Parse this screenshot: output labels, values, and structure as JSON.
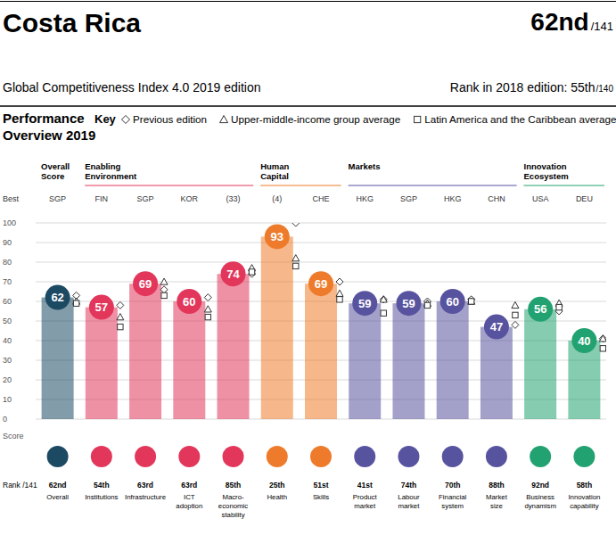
{
  "header": {
    "country": "Costa Rica",
    "rank": "62nd",
    "rank_total": "/141",
    "edition": "Global Competitiveness Index 4.0 2019 edition",
    "previous_rank": "Rank in 2018 edition: 55th",
    "previous_rank_total": "/140"
  },
  "chart_data": {
    "type": "bar",
    "title": "Performance Overview 2019",
    "legend_title": "Key",
    "categories": [
      "Overall",
      "Institutions",
      "Infrastructure",
      "ICT adoption",
      "Macro-economic stability",
      "Health",
      "Skills",
      "Product market",
      "Labour market",
      "Financial system",
      "Market size",
      "Business dynamism",
      "Innovation capability"
    ],
    "values": [
      62,
      57,
      69,
      60,
      74,
      93,
      69,
      59,
      59,
      60,
      47,
      56,
      40
    ],
    "data_labels": true,
    "series": [
      {
        "name": "Previous edition",
        "marker": "diamond",
        "values": [
          63,
          58,
          66,
          62,
          74,
          100,
          70,
          61,
          60,
          61,
          48,
          55,
          41
        ]
      },
      {
        "name": "Upper-middle-income group average",
        "marker": "triangle",
        "values": [
          60,
          52,
          70,
          56,
          77,
          82,
          64,
          61,
          59,
          60,
          58,
          59,
          41
        ]
      },
      {
        "name": "Latin America and the Caribbean average",
        "marker": "square",
        "values": [
          59,
          47,
          63,
          52,
          75,
          78,
          61,
          54,
          58,
          60,
          53,
          57,
          36
        ]
      }
    ],
    "groups": [
      {
        "name": "Overall Score",
        "color": "#1d4a63",
        "categories": [
          "Overall"
        ]
      },
      {
        "name": "Enabling Environment",
        "color": "#e2365b",
        "categories": [
          "Institutions",
          "Infrastructure",
          "ICT adoption",
          "Macro-economic stability"
        ]
      },
      {
        "name": "Human Capital",
        "color": "#ee7b2b",
        "categories": [
          "Health",
          "Skills"
        ]
      },
      {
        "name": "Markets",
        "color": "#58539f",
        "categories": [
          "Product market",
          "Labour market",
          "Financial system",
          "Market size"
        ]
      },
      {
        "name": "Innovation Ecosystem",
        "color": "#23a271",
        "categories": [
          "Business dynamism",
          "Innovation capability"
        ]
      }
    ],
    "best_label": "Best",
    "best": [
      "SGP",
      "FIN",
      "SGP",
      "KOR",
      "(33)",
      "(4)",
      "CHE",
      "HKG",
      "SGP",
      "HKG",
      "CHN",
      "USA",
      "DEU"
    ],
    "rank_label": "Rank /141",
    "ranks": [
      "62nd",
      "54th",
      "63rd",
      "63rd",
      "85th",
      "25th",
      "51st",
      "41st",
      "74th",
      "70th",
      "88th",
      "92nd",
      "58th"
    ],
    "y_label": "Score",
    "ylim": [
      0,
      100
    ],
    "yticks": [
      0,
      10,
      20,
      30,
      40,
      50,
      60,
      70,
      80,
      90,
      100
    ],
    "grid": true
  }
}
